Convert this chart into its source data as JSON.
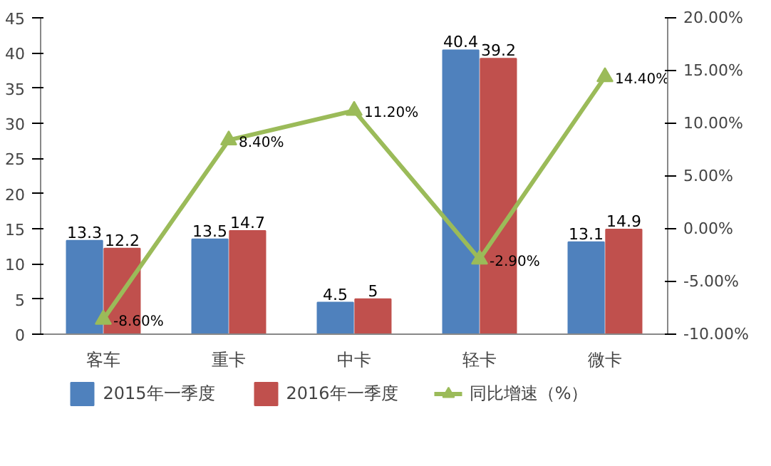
{
  "chart_data": {
    "type": "bar",
    "categories": [
      "客车",
      "重卡",
      "中卡",
      "轻卡",
      "微卡"
    ],
    "series": [
      {
        "name": "2015年一季度",
        "color": "#4f81bd",
        "values": [
          13.3,
          13.5,
          4.5,
          40.4,
          13.1
        ]
      },
      {
        "name": "2016年一季度",
        "color": "#c0504d",
        "values": [
          12.2,
          14.7,
          5,
          39.2,
          14.9
        ]
      },
      {
        "name": "同比增速（%）",
        "type": "line",
        "axis": "y2",
        "color": "#9bbb59",
        "marker": "triangle",
        "values": [
          -8.6,
          8.4,
          11.2,
          -2.9,
          14.4
        ],
        "value_labels": [
          "-8.60%",
          "8.40%",
          "11.20%",
          "-2.90%",
          "14.40%"
        ]
      }
    ],
    "ylim": [
      0,
      45
    ],
    "yticks": [
      0,
      5,
      10,
      15,
      20,
      25,
      30,
      35,
      40,
      45
    ],
    "y2lim": [
      -10,
      20
    ],
    "y2ticks": [
      {
        "value": -10,
        "label": "-10.00%"
      },
      {
        "value": -5,
        "label": "-5.00%"
      },
      {
        "value": 0,
        "label": "0.00%"
      },
      {
        "value": 5,
        "label": "5.00%"
      },
      {
        "value": 10,
        "label": "10.00%"
      },
      {
        "value": 15,
        "label": "15.00%"
      },
      {
        "value": 20,
        "label": "20.00%"
      }
    ],
    "data_labels": true,
    "grid": false,
    "legend": "bottom"
  }
}
